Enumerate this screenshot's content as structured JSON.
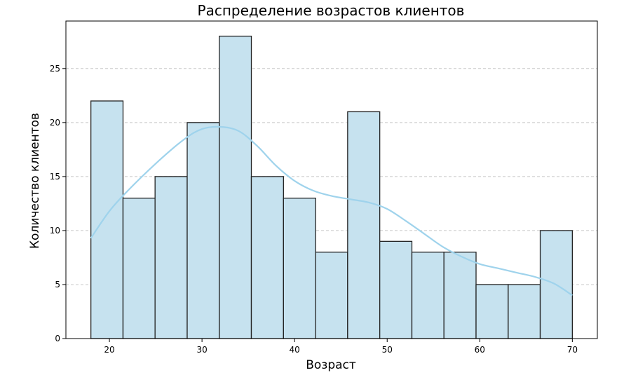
{
  "chart_data": {
    "type": "bar",
    "title": "Распределение возрастов клиентов",
    "xlabel": "Возраст",
    "ylabel": "Количество клиентов",
    "xlim": [
      15.3,
      72.7
    ],
    "ylim": [
      0,
      29.4
    ],
    "xticks": [
      20,
      30,
      40,
      50,
      60,
      70
    ],
    "yticks": [
      0,
      5,
      10,
      15,
      20,
      25
    ],
    "grid": "horizontal-dashed",
    "bin_edges": [
      18,
      21.47,
      24.93,
      28.4,
      31.87,
      35.33,
      38.8,
      42.27,
      45.73,
      49.2,
      52.67,
      56.13,
      59.6,
      63.07,
      66.53,
      70
    ],
    "counts": [
      22,
      13,
      15,
      20,
      28,
      15,
      13,
      8,
      21,
      9,
      8,
      8,
      5,
      5,
      10
    ],
    "kde": {
      "x": [
        18,
        20,
        22,
        25,
        28,
        30,
        32,
        34,
        36,
        38,
        40,
        42,
        44,
        46,
        48,
        50,
        52,
        54,
        56,
        58,
        60,
        62,
        64,
        66,
        68,
        70
      ],
      "y": [
        9.3,
        11.8,
        13.7,
        16.2,
        18.4,
        19.4,
        19.6,
        19.2,
        17.8,
        16.0,
        14.6,
        13.7,
        13.2,
        12.9,
        12.6,
        12.0,
        10.9,
        9.7,
        8.5,
        7.6,
        6.9,
        6.5,
        6.1,
        5.7,
        5.1,
        4.0
      ]
    },
    "colors": {
      "bar_fill": "#c6e2ef",
      "bar_edge": "#222222",
      "kde_line": "#9fd3ec",
      "grid": "#c8c8c8"
    }
  }
}
